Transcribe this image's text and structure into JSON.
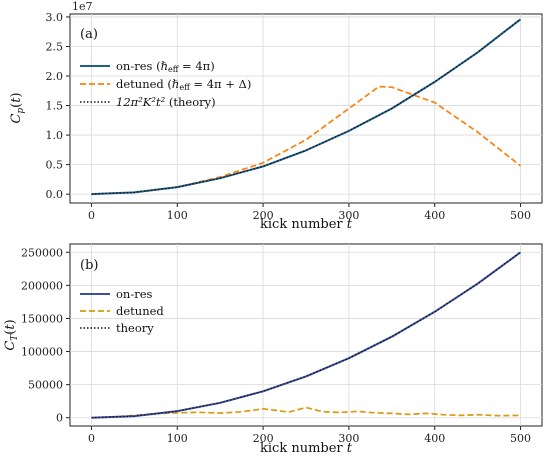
{
  "colors": {
    "on_res_a": "#1f5f8b",
    "detuned_a": "#ff7f0e",
    "on_res_b": "#3b4fa0",
    "detuned_b": "#d99a0b",
    "theory": "#111111"
  },
  "chart_data": [
    {
      "type": "line",
      "panel_label": "(a)",
      "xlabel": "kick number t",
      "ylabel": "C_p(t)",
      "offset_text": "1e7",
      "xlim": [
        -25,
        525
      ],
      "ylim": [
        -0.15,
        3.05
      ],
      "xticks": [
        0,
        100,
        200,
        300,
        400,
        500
      ],
      "yticks": [
        0.0,
        0.5,
        1.0,
        1.5,
        2.0,
        2.5,
        3.0
      ],
      "ytick_labels": [
        "0.0",
        "0.5",
        "1.0",
        "1.5",
        "2.0",
        "2.5",
        "3.0"
      ],
      "grid": true,
      "legend_position": "upper-left",
      "series": [
        {
          "name": "on-res",
          "legend_suffix": "(ℏeff = 4π)",
          "style": "solid",
          "x": [
            0,
            50,
            100,
            150,
            200,
            250,
            300,
            350,
            400,
            450,
            500
          ],
          "values": [
            0.0,
            0.03,
            0.12,
            0.27,
            0.47,
            0.74,
            1.07,
            1.45,
            1.9,
            2.4,
            2.96
          ]
        },
        {
          "name": "detuned",
          "legend_suffix": "(ℏeff = 4π + Δ)",
          "style": "dashed",
          "x": [
            0,
            50,
            100,
            150,
            200,
            250,
            300,
            335,
            350,
            400,
            450,
            500
          ],
          "values": [
            0.0,
            0.03,
            0.12,
            0.29,
            0.53,
            0.92,
            1.45,
            1.82,
            1.81,
            1.55,
            1.05,
            0.48
          ]
        },
        {
          "name": "12π²K²t² (theory)",
          "style": "dotted",
          "x": [
            0,
            50,
            100,
            150,
            200,
            250,
            300,
            350,
            400,
            450,
            500
          ],
          "values": [
            0.0,
            0.03,
            0.12,
            0.27,
            0.47,
            0.74,
            1.07,
            1.45,
            1.9,
            2.4,
            2.96
          ]
        }
      ]
    },
    {
      "type": "line",
      "panel_label": "(b)",
      "xlabel": "kick number t",
      "ylabel": "C_T(t)",
      "xlim": [
        -25,
        525
      ],
      "ylim": [
        -12500,
        262500
      ],
      "xticks": [
        0,
        100,
        200,
        300,
        400,
        500
      ],
      "yticks": [
        0,
        50000,
        100000,
        150000,
        200000,
        250000
      ],
      "ytick_labels": [
        "0",
        "50000",
        "100000",
        "150000",
        "200000",
        "250000"
      ],
      "grid": true,
      "legend_position": "upper-left",
      "series": [
        {
          "name": "on-res",
          "style": "solid",
          "x": [
            0,
            50,
            100,
            150,
            200,
            250,
            300,
            350,
            400,
            450,
            500
          ],
          "values": [
            0,
            2500,
            10000,
            22500,
            40000,
            62500,
            90000,
            122500,
            160000,
            202500,
            250000
          ]
        },
        {
          "name": "detuned",
          "style": "dashed",
          "x": [
            0,
            25,
            50,
            75,
            100,
            125,
            150,
            175,
            200,
            215,
            230,
            250,
            270,
            290,
            310,
            330,
            350,
            370,
            390,
            410,
            430,
            450,
            475,
            500
          ],
          "values": [
            0,
            1200,
            3500,
            6000,
            7500,
            8200,
            7000,
            9000,
            13500,
            11000,
            8500,
            15500,
            9000,
            8000,
            9500,
            7500,
            6500,
            5000,
            6500,
            4500,
            3500,
            4500,
            3000,
            3500
          ]
        },
        {
          "name": "theory",
          "style": "dotted",
          "x": [
            0,
            50,
            100,
            150,
            200,
            250,
            300,
            350,
            400,
            450,
            500
          ],
          "values": [
            0,
            2500,
            10000,
            22500,
            40000,
            62500,
            90000,
            122500,
            160000,
            202500,
            250000
          ]
        }
      ]
    }
  ]
}
